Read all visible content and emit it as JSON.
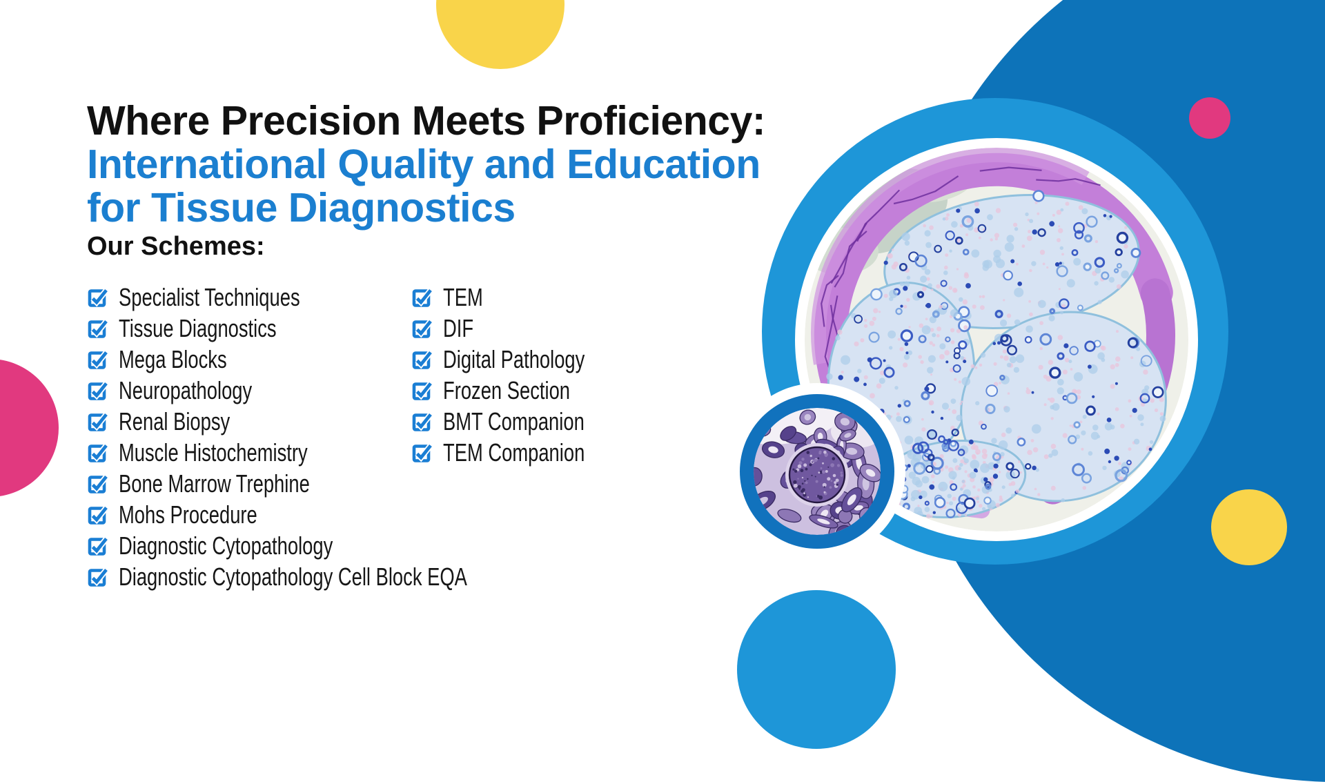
{
  "heading": {
    "line1": "Where Precision Meets Proficiency:",
    "line2": "International Quality and Education",
    "line3": "for Tissue Diagnostics"
  },
  "schemes": {
    "title": "Our Schemes:",
    "column1": [
      "Specialist Techniques",
      "Tissue Diagnostics",
      "Mega Blocks",
      "Neuropathology",
      "Renal Biopsy",
      "Muscle Histochemistry",
      "Bone Marrow Trephine",
      "Mohs Procedure",
      "Diagnostic Cytopathology",
      "Diagnostic Cytopathology Cell Block EQA"
    ],
    "column2": [
      "TEM",
      "DIF",
      "Digital Pathology",
      "Frozen Section",
      "BMT Companion",
      "TEM Companion"
    ]
  },
  "icons": {
    "scheme_bullet": "checkbox-checked-icon"
  },
  "colors": {
    "heading_black": "#111111",
    "heading_blue": "#1b7fd0",
    "checkbox_blue": "#1a7ed4",
    "bg_circle_blue": "#0d73b9",
    "azure": "#1e96d8",
    "small_ring_blue": "#1172bd",
    "pink": "#e1397f",
    "yellow": "#f9d44a",
    "nerve_background": "#eff0e9",
    "nerve_band_purple": "#c37fd9",
    "nerve_fascicle_blue": "#d7e3f3",
    "kidney_background": "#cdc0e0",
    "kidney_tissue_purple": "#7a63a8"
  }
}
